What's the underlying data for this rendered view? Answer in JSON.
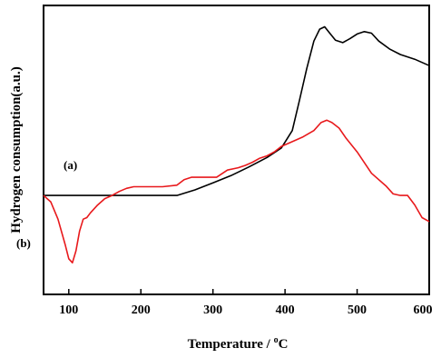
{
  "chart_data": {
    "type": "line",
    "xlabel": "Temperature / °C",
    "ylabel": "Hydrogen consumption(a.u.)",
    "xlim": [
      65,
      600
    ],
    "ylim": [
      -1.25,
      2.4
    ],
    "xticks": [
      100,
      200,
      300,
      400,
      500,
      600
    ],
    "xticklabels": [
      "100",
      "200",
      "300",
      "400",
      "500",
      "600"
    ],
    "yticks_labeled": false,
    "legend": "none",
    "grid": false,
    "series": [
      {
        "name": "(a)",
        "color": "#000000",
        "x": [
          65,
          150,
          200,
          250,
          275,
          300,
          325,
          350,
          375,
          395,
          410,
          420,
          430,
          440,
          448,
          455,
          462,
          470,
          480,
          490,
          500,
          510,
          520,
          530,
          545,
          560,
          580,
          600
        ],
        "y": [
          0.0,
          0.0,
          0.0,
          0.0,
          0.07,
          0.16,
          0.25,
          0.36,
          0.48,
          0.6,
          0.82,
          1.2,
          1.6,
          1.95,
          2.1,
          2.13,
          2.05,
          1.96,
          1.93,
          1.98,
          2.04,
          2.07,
          2.05,
          1.95,
          1.85,
          1.78,
          1.72,
          1.64
        ]
      },
      {
        "name": "(b)",
        "color": "#e8191c",
        "x": [
          65,
          75,
          85,
          95,
          100,
          105,
          110,
          115,
          120,
          125,
          130,
          140,
          150,
          160,
          170,
          180,
          190,
          200,
          210,
          230,
          250,
          260,
          270,
          290,
          305,
          320,
          335,
          345,
          355,
          365,
          375,
          385,
          395,
          410,
          425,
          440,
          450,
          458,
          465,
          475,
          485,
          500,
          520,
          540,
          550,
          560,
          570,
          580,
          590,
          600
        ],
        "y": [
          0.0,
          -0.08,
          -0.3,
          -0.62,
          -0.8,
          -0.85,
          -0.7,
          -0.45,
          -0.3,
          -0.28,
          -0.22,
          -0.12,
          -0.04,
          0.0,
          0.05,
          0.09,
          0.11,
          0.11,
          0.11,
          0.11,
          0.13,
          0.2,
          0.23,
          0.23,
          0.23,
          0.32,
          0.35,
          0.38,
          0.42,
          0.47,
          0.5,
          0.55,
          0.62,
          0.68,
          0.74,
          0.82,
          0.92,
          0.95,
          0.92,
          0.85,
          0.72,
          0.55,
          0.28,
          0.12,
          0.02,
          0.0,
          0.0,
          -0.12,
          -0.28,
          -0.33
        ]
      }
    ]
  },
  "annotations": {
    "label_a": "(a)",
    "label_b": "(b)"
  }
}
